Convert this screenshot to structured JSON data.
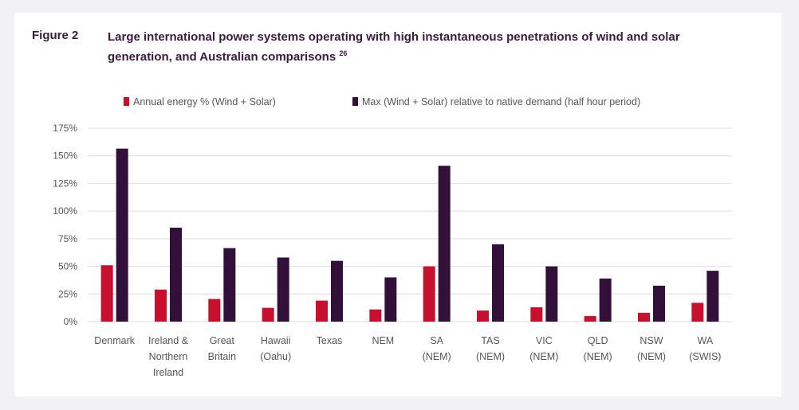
{
  "figure": {
    "label": "Figure 2",
    "title": "Large international power systems operating with high instantaneous penetrations of wind and solar generation, and Australian comparisons",
    "footnote": "26"
  },
  "chart_data": {
    "type": "bar",
    "title": "",
    "xlabel": "",
    "ylabel": "",
    "ylim": [
      0,
      175
    ],
    "yticks": [
      "0%",
      "25%",
      "50%",
      "75%",
      "100%",
      "125%",
      "150%",
      "175%"
    ],
    "grid": true,
    "legend_placement": "top",
    "categories": [
      [
        "Denmark"
      ],
      [
        "Ireland &",
        "Northern",
        "Ireland"
      ],
      [
        "Great",
        "Britain"
      ],
      [
        "Hawaii",
        "(Oahu)"
      ],
      [
        "Texas"
      ],
      [
        "NEM"
      ],
      [
        "SA",
        "(NEM)"
      ],
      [
        "TAS",
        "(NEM)"
      ],
      [
        "VIC",
        "(NEM)"
      ],
      [
        "QLD",
        "(NEM)"
      ],
      [
        "NSW",
        "(NEM)"
      ],
      [
        "WA",
        "(SWIS)"
      ]
    ],
    "series": [
      {
        "name": "Annual energy % (Wind + Solar)",
        "color": "#c8102e",
        "values": [
          51,
          29,
          20.5,
          12.5,
          19,
          11,
          50,
          10,
          13,
          5,
          8,
          17
        ]
      },
      {
        "name": "Max (Wind + Solar) relative to native demand (half hour period)",
        "color": "#33103a",
        "values": [
          156.5,
          85,
          66.5,
          58,
          55,
          40,
          141,
          70,
          50,
          39,
          32.5,
          46
        ]
      }
    ]
  }
}
